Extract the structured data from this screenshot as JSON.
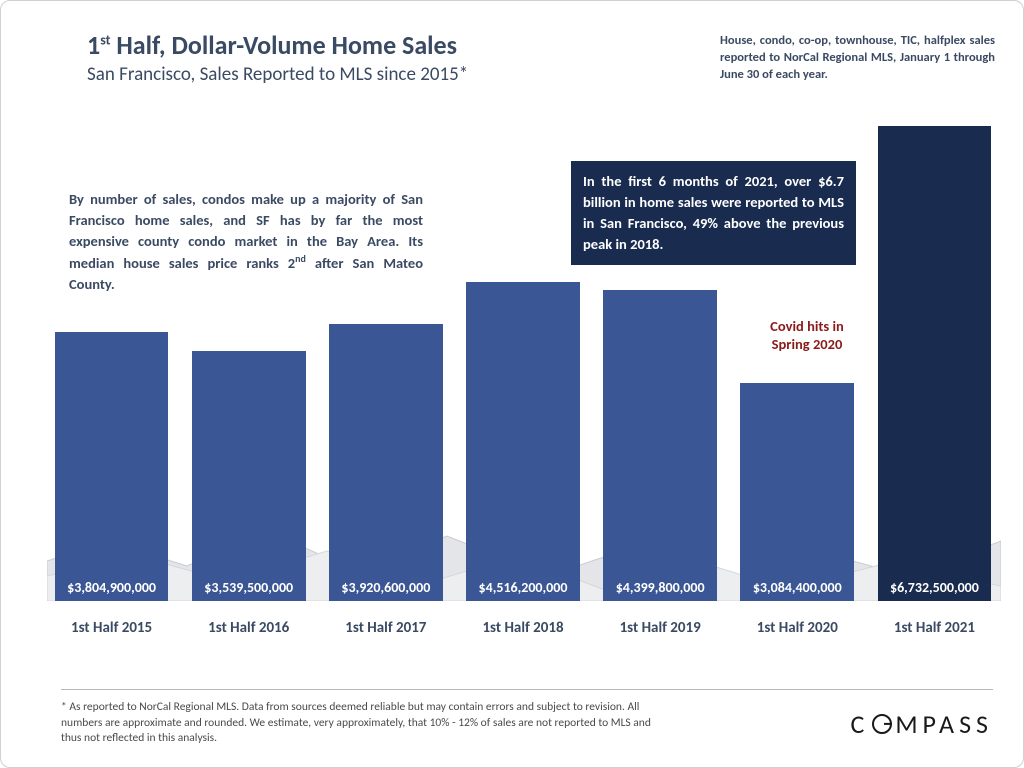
{
  "title": {
    "main_pre": "1",
    "main_sup": "st",
    "main_post": " Half, Dollar-Volume Home Sales",
    "sub": "San Francisco, Sales Reported to MLS since 2015*"
  },
  "corner_note": "House, condo, co-op, townhouse, TIC, halfplex sales reported to NorCal Regional MLS, January 1 through June 30 of each year.",
  "left_callout_pre": "By number of sales, condos make up a majority of San Francisco home sales, and SF has by far the most expensive county condo market in the Bay Area. Its median house sales price ranks 2",
  "left_callout_sup": "nd",
  "left_callout_post": " after San Mateo County.",
  "blue_callout": "In the first 6 months of 2021, over $6.7 billion in home sales were reported to MLS in San Francisco, 49% above the previous peak in 2018.",
  "covid_note": "Covid hits in Spring 2020",
  "chart": {
    "type": "bar",
    "categories": [
      "1st Half 2015",
      "1st Half 2016",
      "1st Half 2017",
      "1st Half 2018",
      "1st Half 2019",
      "1st Half 2020",
      "1st Half 2021"
    ],
    "values": [
      3804900000,
      3539500000,
      3920600000,
      4516200000,
      4399800000,
      3084400000,
      6732500000
    ],
    "value_labels": [
      "$3,804,900,000",
      "$3,539,500,000",
      "$3,920,600,000",
      "$4,516,200,000",
      "$4,399,800,000",
      "$3,084,400,000",
      "$6,732,500,000"
    ],
    "bar_colors": [
      "#3a5694",
      "#3a5694",
      "#3a5694",
      "#3a5694",
      "#3a5694",
      "#3a5694",
      "#1a2b50"
    ],
    "y_max": 6800000000,
    "background_color": "#ffffff",
    "value_label_color": "#ffffff",
    "value_label_fontsize": 14,
    "xlabel_color": "#3a4a63",
    "xlabel_fontsize": 15,
    "mountain_fill": "#e3e5e8",
    "mountain_stroke": "#c8ccd0"
  },
  "disclaimer": "* As reported to NorCal Regional MLS. Data from sources deemed reliable but may contain errors and subject to revision. All numbers are approximate and rounded. We estimate, very approximately, that 10% - 12% of sales are not reported to MLS and thus not reflected in this analysis.",
  "logo_text_pre": "C",
  "logo_text_post": "MPASS"
}
